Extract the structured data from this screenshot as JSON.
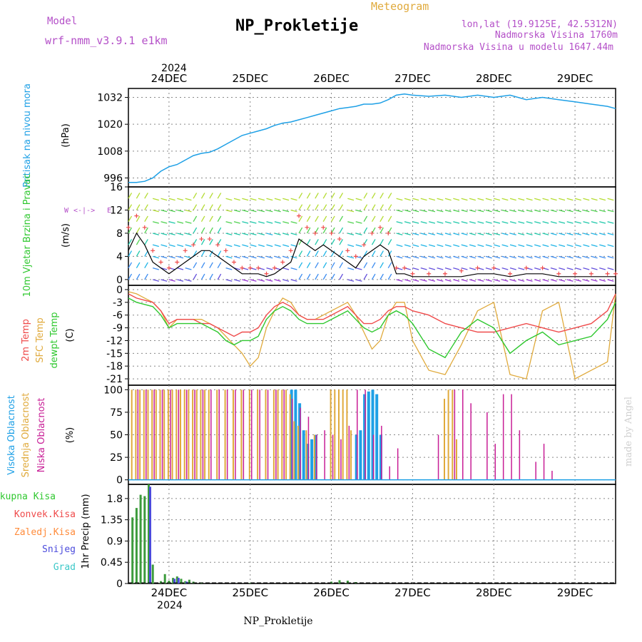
{
  "header": {
    "model_label": "Model",
    "model_name": "wrf-nmm_v3.9.1  e1km",
    "title": "NP_Prokletije",
    "subtitle": "Meteogram",
    "lonlat": "lon,lat (19.9125E, 42.5312N)",
    "elevation": "Nadmorska Visina 1760m",
    "model_elevation": "Nadmorska Visina u modelu 1647.44m",
    "footer": "NP_Prokletije",
    "watermark": "made by Angel",
    "year": "2024"
  },
  "colors": {
    "pressure": "#1ea0e6",
    "temp2m": "#ef4b4b",
    "sfc_temp": "#e0aa3c",
    "dewpt": "#30c830",
    "high_cloud": "#1ea0e6",
    "mid_cloud": "#e0aa3c",
    "low_cloud": "#c81e96",
    "total_precip": "#3c9b3c",
    "conv_precip": "#ef4b4b",
    "freezing": "#ff8c3c",
    "snow": "#4b4bdc",
    "graupel": "#3cc8c8",
    "wind_line": "#000000",
    "wind_gust": "#ef4b4b",
    "purple_text": "#b450c8"
  },
  "chart_data": [
    {
      "type": "line",
      "panel": "pressure",
      "ylabel": "(hPa)",
      "side_label": "Pritisak na nivou mora",
      "ylim": [
        992,
        1036
      ],
      "yticks": [
        "996",
        "1008",
        "1020",
        "1032"
      ],
      "ytick_values": [
        996,
        1008,
        1020,
        1032
      ],
      "x_days": [
        "24DEC",
        "25DEC",
        "26DEC",
        "27DEC",
        "28DEC",
        "29DEC"
      ],
      "x": [
        -0.5,
        -0.4,
        -0.3,
        -0.2,
        -0.1,
        0,
        0.1,
        0.2,
        0.3,
        0.4,
        0.5,
        0.6,
        0.7,
        0.8,
        0.9,
        1.0,
        1.1,
        1.2,
        1.3,
        1.4,
        1.5,
        1.6,
        1.7,
        1.8,
        1.9,
        2.0,
        2.1,
        2.2,
        2.3,
        2.4,
        2.5,
        2.6,
        2.7,
        2.8,
        2.9,
        3.0,
        3.2,
        3.4,
        3.6,
        3.8,
        4.0,
        4.2,
        4.4,
        4.6,
        4.8,
        5.0,
        5.2,
        5.4,
        5.5
      ],
      "series": [
        {
          "values": [
            994,
            994,
            994.5,
            996,
            999,
            1001,
            1002,
            1004,
            1006,
            1007,
            1007.5,
            1009,
            1011,
            1013,
            1015,
            1016,
            1017,
            1018,
            1019.5,
            1020.5,
            1021,
            1022,
            1023,
            1024,
            1025,
            1026,
            1027,
            1027.5,
            1028,
            1029,
            1029,
            1029.5,
            1031,
            1033,
            1033.5,
            1033,
            1032.5,
            1033,
            1032,
            1033,
            1032,
            1033,
            1031,
            1032,
            1031,
            1030,
            1029,
            1028,
            1027
          ]
        }
      ]
    },
    {
      "type": "line",
      "panel": "wind",
      "ylabel": "(m/s)",
      "side_label": "10m Vjetar Brzina i Pravac",
      "ylim": [
        -1,
        16
      ],
      "yticks": [
        "0",
        "4",
        "8",
        "12",
        "16"
      ],
      "ytick_values": [
        0,
        4,
        8,
        12,
        16
      ],
      "x": [
        -0.5,
        -0.4,
        -0.3,
        -0.2,
        -0.1,
        0,
        0.1,
        0.2,
        0.3,
        0.4,
        0.5,
        0.6,
        0.7,
        0.8,
        0.9,
        1.0,
        1.1,
        1.2,
        1.3,
        1.4,
        1.5,
        1.6,
        1.7,
        1.8,
        1.9,
        2.0,
        2.1,
        2.2,
        2.3,
        2.4,
        2.5,
        2.6,
        2.7,
        2.8,
        2.9,
        3.0,
        3.2,
        3.4,
        3.6,
        3.8,
        4.0,
        4.2,
        4.4,
        4.6,
        4.8,
        5.0,
        5.2,
        5.4,
        5.5
      ],
      "series": [
        {
          "name": "speed",
          "values": [
            5,
            8,
            6,
            3,
            2,
            1,
            2,
            3,
            4,
            5,
            5,
            4,
            3,
            2,
            1,
            1,
            1,
            0.5,
            1,
            2,
            3,
            7,
            6,
            5,
            6,
            5,
            4,
            3,
            2,
            4,
            5,
            6,
            5,
            1,
            1,
            0.5,
            0.5,
            0.5,
            0.5,
            1,
            1,
            0.5,
            1,
            1,
            0.5,
            0.5,
            0.5,
            0.5,
            0.5
          ]
        },
        {
          "name": "gust",
          "values": [
            9,
            11,
            9,
            5,
            3,
            2,
            3,
            5,
            6,
            7,
            7,
            6,
            5,
            3,
            2,
            2,
            2,
            1,
            2,
            3,
            5,
            11,
            9,
            8,
            9,
            8,
            7,
            5,
            4,
            6,
            8,
            9,
            8,
            2,
            2,
            1,
            1,
            1,
            1.5,
            2,
            2,
            1,
            2,
            2,
            1,
            1,
            1,
            1,
            1
          ]
        }
      ]
    },
    {
      "type": "line",
      "panel": "temperature",
      "ylabel": "(C)",
      "side_labels": [
        "2m Temp",
        "SFC Temp",
        "dewpt Temp"
      ],
      "ylim": [
        -22.5,
        1
      ],
      "yticks": [
        "0",
        "-3",
        "-6",
        "-9",
        "-12",
        "-15",
        "-18",
        "-21"
      ],
      "ytick_values": [
        0,
        -3,
        -6,
        -9,
        -12,
        -15,
        -18,
        -21
      ],
      "x": [
        -0.5,
        -0.4,
        -0.3,
        -0.2,
        -0.1,
        0,
        0.1,
        0.2,
        0.3,
        0.4,
        0.5,
        0.6,
        0.7,
        0.8,
        0.9,
        1.0,
        1.1,
        1.2,
        1.3,
        1.4,
        1.5,
        1.6,
        1.7,
        1.8,
        1.9,
        2.0,
        2.1,
        2.2,
        2.3,
        2.4,
        2.5,
        2.6,
        2.7,
        2.8,
        2.9,
        3.0,
        3.2,
        3.4,
        3.6,
        3.8,
        4.0,
        4.2,
        4.4,
        4.6,
        4.8,
        5.0,
        5.2,
        5.4,
        5.5
      ],
      "series": [
        {
          "name": "2m Temp",
          "values": [
            -1,
            -2,
            -2.5,
            -3,
            -5,
            -8,
            -7,
            -7,
            -7,
            -8,
            -8,
            -9,
            -10,
            -11,
            -10,
            -10,
            -9,
            -6,
            -4,
            -3,
            -4,
            -6,
            -7,
            -7,
            -7,
            -6,
            -5,
            -4,
            -6,
            -8,
            -8,
            -7,
            -5,
            -4,
            -4,
            -5,
            -6,
            -8,
            -9,
            -10,
            -10,
            -9,
            -8,
            -9,
            -10,
            -9,
            -8,
            -5,
            -1
          ]
        },
        {
          "name": "SFC Temp",
          "values": [
            -0.5,
            -1,
            -2,
            -3,
            -5,
            -9,
            -7,
            -7,
            -7,
            -7,
            -8,
            -9,
            -11,
            -13,
            -15,
            -18,
            -16,
            -9,
            -5,
            -2,
            -3,
            -6,
            -7,
            -7,
            -6,
            -5,
            -4,
            -3,
            -6,
            -10,
            -14,
            -12,
            -6,
            -3,
            -3,
            -12,
            -19,
            -20,
            -13,
            -5,
            -3,
            -20,
            -21,
            -5,
            -3,
            -21,
            -19,
            -17,
            -1
          ]
        },
        {
          "name": "dewpt Temp",
          "values": [
            -2,
            -3,
            -3.5,
            -4,
            -6,
            -9,
            -8,
            -8,
            -8,
            -8,
            -9,
            -10,
            -12,
            -13,
            -12,
            -12,
            -11,
            -7,
            -5,
            -4,
            -5,
            -7,
            -8,
            -8,
            -8,
            -7,
            -6,
            -5,
            -7,
            -9,
            -10,
            -9,
            -6,
            -5,
            -6,
            -8,
            -14,
            -16,
            -10,
            -7,
            -9,
            -15,
            -12,
            -10,
            -13,
            -12,
            -11,
            -7,
            -3
          ]
        }
      ]
    },
    {
      "type": "bar",
      "panel": "cloud",
      "ylabel": "(%)",
      "side_labels": [
        "Visoka Oblacnost",
        "Srednja Oblacnost",
        "Niska Oblacnost"
      ],
      "ylim": [
        -5,
        105
      ],
      "yticks": [
        "0",
        "25",
        "50",
        "75",
        "100"
      ],
      "ytick_values": [
        0,
        25,
        50,
        75,
        100
      ],
      "series": [
        {
          "name": "Visoka Oblacnost",
          "x": [
            1.5,
            1.55,
            1.6,
            1.65,
            1.7,
            1.75,
            1.8,
            2.3,
            2.35,
            2.4,
            2.45,
            2.5,
            2.55,
            2.6
          ],
          "values": [
            100,
            100,
            85,
            55,
            40,
            45,
            50,
            50,
            55,
            95,
            98,
            100,
            95,
            50
          ]
        },
        {
          "name": "Srednja Oblacnost",
          "x": [
            -0.45,
            -0.4,
            -0.35,
            -0.3,
            -0.25,
            -0.2,
            -0.15,
            -0.1,
            -0.05,
            0,
            0.05,
            0.1,
            0.15,
            0.2,
            0.25,
            0.3,
            0.35,
            0.4,
            0.45,
            0.5,
            0.6,
            0.7,
            0.8,
            0.9,
            1.0,
            1.1,
            1.2,
            1.3,
            1.35,
            1.4,
            1.45,
            1.5,
            1.55,
            1.6,
            1.7,
            1.8,
            2.0,
            2.05,
            2.1,
            2.15,
            2.2,
            2.25,
            3.4,
            3.45,
            3.5,
            3.55
          ],
          "values": [
            100,
            100,
            100,
            100,
            100,
            100,
            100,
            100,
            100,
            100,
            100,
            100,
            100,
            100,
            100,
            100,
            100,
            100,
            100,
            100,
            100,
            100,
            100,
            100,
            100,
            100,
            100,
            100,
            100,
            100,
            100,
            95,
            65,
            60,
            55,
            50,
            100,
            100,
            100,
            100,
            100,
            55,
            90,
            100,
            100,
            45
          ]
        },
        {
          "name": "Niska Oblacnost",
          "x": [
            -0.4,
            -0.3,
            -0.2,
            -0.1,
            0,
            0.1,
            0.2,
            0.3,
            0.4,
            0.5,
            0.6,
            0.7,
            0.8,
            0.9,
            1.0,
            1.1,
            1.2,
            1.3,
            1.4,
            1.5,
            1.6,
            1.7,
            1.8,
            1.9,
            2.0,
            2.1,
            2.2,
            2.3,
            2.4,
            2.5,
            2.6,
            2.7,
            2.8,
            3.3,
            3.5,
            3.6,
            3.7,
            3.9,
            4.0,
            4.1,
            4.2,
            4.3,
            4.5,
            4.6,
            4.7
          ],
          "values": [
            100,
            100,
            100,
            100,
            100,
            100,
            100,
            100,
            100,
            100,
            100,
            100,
            100,
            100,
            100,
            100,
            100,
            100,
            100,
            90,
            80,
            70,
            50,
            55,
            50,
            45,
            60,
            100,
            100,
            50,
            60,
            15,
            35,
            50,
            100,
            100,
            85,
            75,
            40,
            95,
            95,
            55,
            20,
            40,
            10
          ]
        }
      ]
    },
    {
      "type": "bar",
      "panel": "precip",
      "ylabel": "1hr Precip (mm)",
      "side_labels": [
        "Ukupna Kisa",
        "Konvek.Kisa",
        "Zaledj.Kisa",
        "Snijeg",
        "Grad"
      ],
      "ylim": [
        0,
        2.1
      ],
      "yticks": [
        "0",
        "0.45",
        "0.9",
        "1.35",
        "1.8"
      ],
      "ytick_values": [
        0,
        0.45,
        0.9,
        1.35,
        1.8
      ],
      "series": [
        {
          "name": "Ukupna Kisa",
          "x": [
            -0.45,
            -0.4,
            -0.35,
            -0.3,
            -0.25,
            -0.2,
            -0.1,
            -0.05,
            0,
            0.05,
            0.1,
            0.15,
            0.2,
            0.25,
            0.3,
            0.4,
            1.0,
            2.0,
            2.1,
            2.2,
            2.3
          ],
          "values": [
            1.4,
            1.6,
            1.88,
            1.85,
            2.1,
            0.4,
            0.05,
            0.2,
            0.06,
            0.12,
            0.15,
            0.1,
            0.05,
            0.08,
            0.04,
            0.02,
            0.01,
            0.04,
            0.07,
            0.06,
            0.03
          ]
        },
        {
          "name": "Snijeg",
          "x": [
            -0.25,
            0.05,
            0.1,
            0.2
          ],
          "values": [
            2.05,
            0.1,
            0.12,
            0.04
          ]
        }
      ]
    }
  ]
}
